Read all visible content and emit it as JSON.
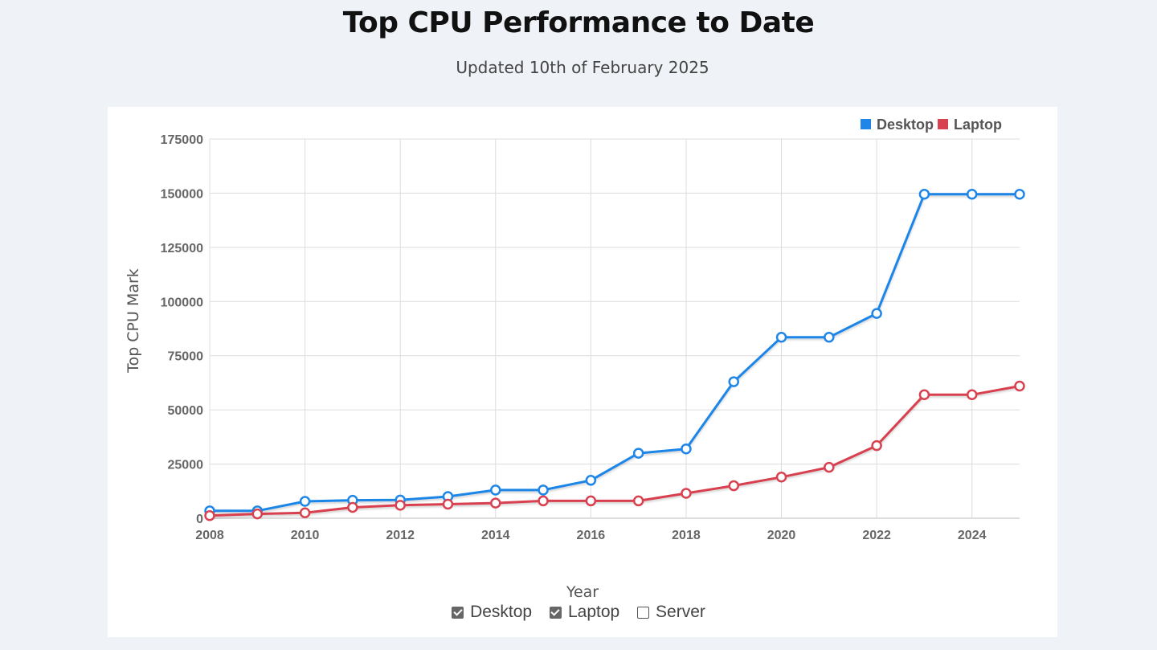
{
  "header": {
    "title": "Top CPU Performance to Date",
    "subtitle": "Updated 10th of February 2025"
  },
  "filters": [
    {
      "label": "Desktop",
      "checked": true
    },
    {
      "label": "Laptop",
      "checked": true
    },
    {
      "label": "Server",
      "checked": false
    }
  ],
  "chart_data": {
    "type": "line",
    "title": "",
    "xlabel": "Year",
    "ylabel": "Top CPU Mark",
    "xlim": [
      2008,
      2025
    ],
    "ylim": [
      0,
      175000
    ],
    "x_ticks": [
      2008,
      2010,
      2012,
      2014,
      2016,
      2018,
      2020,
      2022,
      2024
    ],
    "y_ticks": [
      0,
      25000,
      50000,
      75000,
      100000,
      125000,
      150000,
      175000
    ],
    "grid": true,
    "legend_position": "top-right",
    "x": [
      2008,
      2009,
      2010,
      2011,
      2012,
      2013,
      2014,
      2015,
      2016,
      2017,
      2018,
      2019,
      2020,
      2021,
      2022,
      2023,
      2024,
      2025
    ],
    "series": [
      {
        "name": "Desktop",
        "color": "#1f86e8",
        "values": [
          3400,
          3400,
          7800,
          8300,
          8400,
          10000,
          13000,
          13000,
          17500,
          30000,
          32000,
          63000,
          83500,
          83500,
          94500,
          149500,
          149500,
          149500
        ]
      },
      {
        "name": "Laptop",
        "color": "#d8414f",
        "values": [
          1200,
          2000,
          2500,
          5000,
          6000,
          6500,
          7000,
          8000,
          8000,
          8000,
          11500,
          15000,
          19000,
          23500,
          33500,
          57000,
          57000,
          61000
        ]
      }
    ]
  }
}
